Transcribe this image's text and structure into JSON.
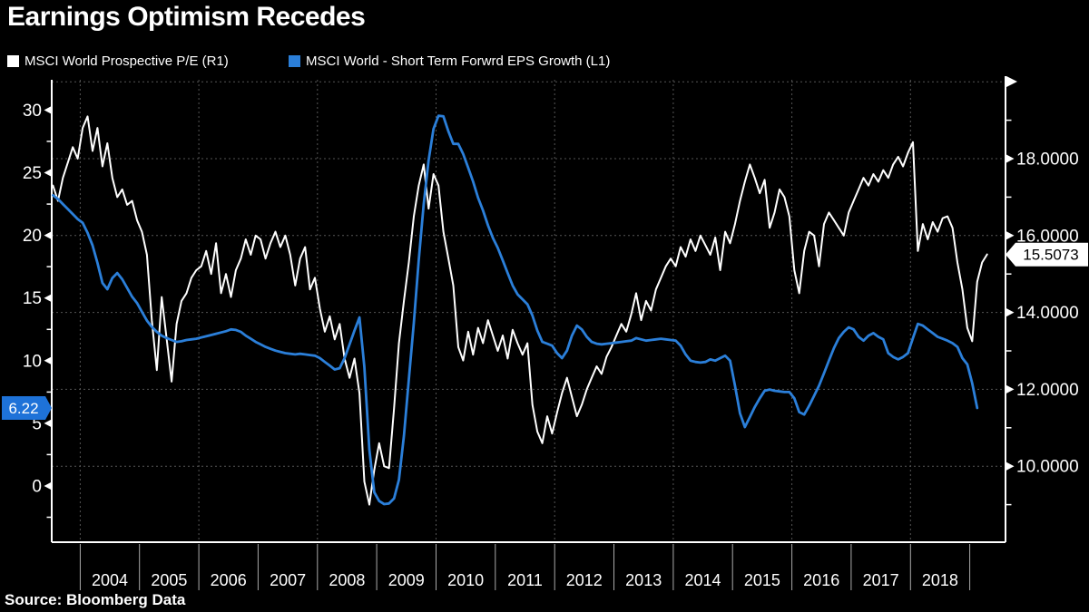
{
  "header": {
    "title": "Earnings Optimism Recedes"
  },
  "legend": [
    {
      "label": "MSCI World Prospective P/E (R1)",
      "color": "#ffffff"
    },
    {
      "label": "MSCI World - Short Term Forwrd EPS Growth (L1)",
      "color": "#2b7fd9"
    }
  ],
  "source": "Source: Bloomberg Data",
  "colors": {
    "background": "#000000",
    "grid": "#555555",
    "axis": "#ffffff",
    "year_divider": "#aaaaaa",
    "blue_series": "#2b7fd9",
    "white_series": "#ffffff",
    "left_badge_bg": "#1e72d8",
    "left_badge_text": "#ffffff",
    "right_badge_bg": "#ffffff",
    "right_badge_text": "#000000"
  },
  "badges": {
    "left": {
      "text": "6.22",
      "value": 6.22
    },
    "right": {
      "text": "15.5073",
      "value": 15.5073
    }
  },
  "axes": {
    "left": {
      "major_ticks": [
        30,
        25,
        20,
        15,
        10,
        5,
        0
      ],
      "minor_ticks": [
        27.5,
        22.5,
        17.5,
        12.5,
        7.5,
        2.5,
        -2.5
      ]
    },
    "right": {
      "major_ticks": [
        18,
        16,
        14,
        12,
        10
      ],
      "major_labels": [
        "18.0000",
        "16.0000",
        "14.0000",
        "12.0000",
        "10.0000"
      ],
      "unlabeled_major": 20,
      "minor_ticks": [
        19,
        17,
        15,
        13,
        11,
        9
      ]
    },
    "x": {
      "year_labels": [
        "2004",
        "2005",
        "2006",
        "2007",
        "2008",
        "2009",
        "2010",
        "2011",
        "2012",
        "2013",
        "2014",
        "2015",
        "2016",
        "2017",
        "2018"
      ],
      "gridline_years": [
        2004,
        2006,
        2008,
        2010,
        2012,
        2014,
        2016,
        2018
      ]
    }
  },
  "chart_data": {
    "type": "line",
    "title": "Earnings Optimism Recedes",
    "grid": true,
    "legend_position": "top",
    "x_axis": {
      "start_year": 2003.54,
      "end_year": 2019.35,
      "tick_years": [
        2004,
        2005,
        2006,
        2007,
        2008,
        2009,
        2010,
        2011,
        2012,
        2013,
        2014,
        2015,
        2016,
        2017,
        2018
      ]
    },
    "left_axis_range": [
      -4.5,
      32.4
    ],
    "right_axis_range": [
      8.0,
      20.0
    ],
    "series": [
      {
        "name": "MSCI World Prospective P/E (R1)",
        "axis": "right",
        "color": "#ffffff",
        "last_value": 15.5073,
        "start_year": 2003.5417,
        "points_per_year": 12,
        "values": [
          17.3,
          16.9,
          17.5,
          17.9,
          18.3,
          18.0,
          18.8,
          19.1,
          18.2,
          18.8,
          17.8,
          18.4,
          17.5,
          17.0,
          17.2,
          16.8,
          16.9,
          16.4,
          16.1,
          15.5,
          13.8,
          12.5,
          14.4,
          13.3,
          12.2,
          13.7,
          14.3,
          14.5,
          14.9,
          15.1,
          15.2,
          15.6,
          15.0,
          15.8,
          14.5,
          15.0,
          14.4,
          15.1,
          15.4,
          15.9,
          15.5,
          16.0,
          15.9,
          15.4,
          15.8,
          16.1,
          15.7,
          16.0,
          15.5,
          14.7,
          15.4,
          15.7,
          14.6,
          14.9,
          14.1,
          13.5,
          13.9,
          13.3,
          13.7,
          12.8,
          12.3,
          12.8,
          11.9,
          9.6,
          9.0,
          9.9,
          10.6,
          10.0,
          9.95,
          11.5,
          13.2,
          14.3,
          15.3,
          16.5,
          17.3,
          17.85,
          16.7,
          17.6,
          17.3,
          16.1,
          15.4,
          14.7,
          13.1,
          12.75,
          13.5,
          12.9,
          13.6,
          13.2,
          13.8,
          13.4,
          13.0,
          13.4,
          12.8,
          13.55,
          13.2,
          12.9,
          13.2,
          11.6,
          10.9,
          10.6,
          11.3,
          10.85,
          11.4,
          11.9,
          12.3,
          11.8,
          11.3,
          11.6,
          12.0,
          12.3,
          12.6,
          12.4,
          12.85,
          13.1,
          13.4,
          13.7,
          13.5,
          13.95,
          14.5,
          13.8,
          14.3,
          14.05,
          14.6,
          14.9,
          15.2,
          15.4,
          15.2,
          15.7,
          15.45,
          15.9,
          15.6,
          16.0,
          15.75,
          15.5,
          15.95,
          15.1,
          16.1,
          15.8,
          16.3,
          16.9,
          17.4,
          17.85,
          17.5,
          17.1,
          17.45,
          16.2,
          16.6,
          17.2,
          17.0,
          16.5,
          15.1,
          14.5,
          15.6,
          16.1,
          16.0,
          15.2,
          16.3,
          16.6,
          16.4,
          16.2,
          16.0,
          16.6,
          16.9,
          17.2,
          17.5,
          17.3,
          17.6,
          17.4,
          17.7,
          17.5,
          17.85,
          18.05,
          17.8,
          18.15,
          18.43,
          15.6,
          16.3,
          15.9,
          16.35,
          16.1,
          16.45,
          16.5,
          16.2,
          15.3,
          14.6,
          13.6,
          13.25,
          14.8,
          15.3,
          15.51
        ]
      },
      {
        "name": "MSCI World - Short Term Forwrd EPS Growth (L1)",
        "axis": "left",
        "color": "#2b7fd9",
        "last_value": 6.22,
        "start_year": 2003.5417,
        "points_per_year": 12,
        "values": [
          23.2,
          22.9,
          22.5,
          22.1,
          21.7,
          21.3,
          21.0,
          20.2,
          19.2,
          17.8,
          16.2,
          15.7,
          16.6,
          17.0,
          16.5,
          15.8,
          15.1,
          14.6,
          13.9,
          13.2,
          12.7,
          12.3,
          12.0,
          11.8,
          11.65,
          11.5,
          11.55,
          11.65,
          11.7,
          11.75,
          11.85,
          11.95,
          12.05,
          12.15,
          12.25,
          12.35,
          12.5,
          12.45,
          12.3,
          12.0,
          11.75,
          11.5,
          11.3,
          11.1,
          10.95,
          10.8,
          10.7,
          10.6,
          10.55,
          10.5,
          10.55,
          10.5,
          10.45,
          10.4,
          10.2,
          9.9,
          9.6,
          9.3,
          9.4,
          10.2,
          11.3,
          12.4,
          13.45,
          9.5,
          2.9,
          -0.5,
          -1.2,
          -1.45,
          -1.4,
          -1.0,
          0.5,
          4.0,
          8.5,
          13.0,
          18.0,
          22.5,
          26.0,
          28.5,
          29.55,
          29.5,
          28.3,
          27.3,
          27.3,
          26.5,
          25.4,
          24.3,
          23.0,
          22.0,
          20.8,
          19.8,
          19.0,
          18.0,
          17.0,
          16.0,
          15.3,
          14.9,
          14.5,
          13.6,
          12.4,
          11.5,
          11.35,
          11.2,
          10.6,
          10.2,
          10.8,
          12.0,
          12.8,
          12.5,
          11.9,
          11.5,
          11.35,
          11.3,
          11.35,
          11.4,
          11.45,
          11.5,
          11.55,
          11.6,
          11.8,
          11.7,
          11.6,
          11.65,
          11.7,
          11.75,
          11.7,
          11.65,
          11.6,
          11.2,
          10.5,
          10.0,
          9.9,
          9.85,
          9.9,
          10.1,
          10.0,
          10.2,
          10.4,
          10.0,
          8.0,
          5.8,
          4.7,
          5.5,
          6.3,
          7.0,
          7.6,
          7.7,
          7.6,
          7.55,
          7.5,
          7.5,
          7.0,
          5.9,
          5.7,
          6.4,
          7.2,
          8.0,
          9.0,
          10.0,
          11.0,
          11.8,
          12.3,
          12.66,
          12.5,
          11.9,
          11.6,
          12.0,
          12.2,
          11.9,
          11.7,
          10.6,
          10.3,
          10.1,
          10.3,
          10.6,
          11.8,
          12.94,
          12.8,
          12.5,
          12.2,
          11.9,
          11.75,
          11.6,
          11.4,
          11.1,
          10.2,
          9.7,
          8.2,
          6.22
        ]
      }
    ]
  }
}
